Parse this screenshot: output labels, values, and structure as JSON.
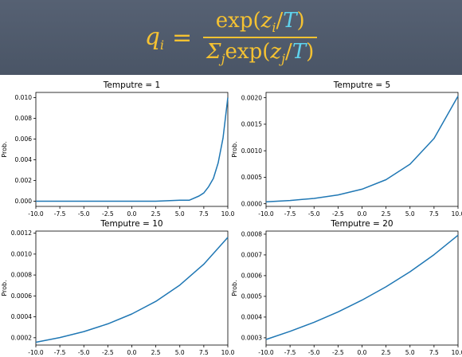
{
  "formula": {
    "lhs_q": "q",
    "lhs_i": "i",
    "eq": "=",
    "num_exp": "exp(",
    "num_z": "z",
    "num_i": "i",
    "num_slash": "/",
    "num_T": "T",
    "num_close": ")",
    "den_sigma": "Σ",
    "den_j": "j",
    "den_exp": "exp(",
    "den_z": "z",
    "den_zj": "j",
    "den_slash": "/",
    "den_T": "T",
    "den_close": ")",
    "color_main": "#f5c232",
    "color_T": "#5fd3ee"
  },
  "chart_data": [
    {
      "type": "line",
      "title": "Temputre = 1",
      "ylabel": "Prob.",
      "temperature": 1,
      "xlim": [
        -10.0,
        10.0
      ],
      "ylim": [
        -0.0005,
        0.0105
      ],
      "xticks": [
        "-10.0",
        "-7.5",
        "-5.0",
        "-2.5",
        "0.0",
        "2.5",
        "5.0",
        "7.5",
        "10.0"
      ],
      "yticks": [
        "0.000",
        "0.002",
        "0.004",
        "0.006",
        "0.008",
        "0.010"
      ],
      "series": [
        {
          "x": [
            -10.0,
            -7.5,
            -5.0,
            -2.5,
            0.0,
            2.5,
            5.0,
            6.0,
            7.0,
            7.5,
            8.0,
            8.5,
            9.0,
            9.5,
            10.0
          ],
          "y": [
            0.0,
            0.0,
            0.0,
            0.0,
            0.0,
            0.0,
            0.0001,
            0.0001,
            0.0005,
            0.0008,
            0.0014,
            0.0022,
            0.0037,
            0.0061,
            0.01
          ],
          "color": "#1f77b4"
        }
      ]
    },
    {
      "type": "line",
      "title": "Temputre = 5",
      "ylabel": "Prob.",
      "temperature": 5,
      "xlim": [
        -10.0,
        10.0
      ],
      "ylim": [
        -5e-05,
        0.0021
      ],
      "xticks": [
        "-10.0",
        "-7.5",
        "-5.0",
        "-2.5",
        "0.0",
        "2.5",
        "5.0",
        "7.5",
        "10.0"
      ],
      "yticks": [
        "0.0000",
        "0.0005",
        "0.0010",
        "0.0015",
        "0.0020"
      ],
      "series": [
        {
          "x": [
            -10.0,
            -7.5,
            -5.0,
            -2.5,
            0.0,
            2.5,
            5.0,
            7.5,
            10.0
          ],
          "y": [
            3.72e-05,
            6.13e-05,
            0.0001011,
            0.0001667,
            0.0002748,
            0.000453,
            0.000747,
            0.0012316,
            0.0020305
          ],
          "color": "#1f77b4"
        }
      ]
    },
    {
      "type": "line",
      "title": "Temputre = 10",
      "ylabel": "Prob.",
      "temperature": 10,
      "xlim": [
        -10.0,
        10.0
      ],
      "ylim": [
        0.00013,
        0.00122
      ],
      "xticks": [
        "-10.0",
        "-7.5",
        "-5.0",
        "-2.5",
        "0.0",
        "2.5",
        "5.0",
        "7.5",
        "10.0"
      ],
      "yticks": [
        "0.0002",
        "0.0004",
        "0.0006",
        "0.0008",
        "0.0010",
        "0.0012"
      ],
      "series": [
        {
          "x": [
            -10.0,
            -7.5,
            -5.0,
            -2.5,
            0.0,
            2.5,
            5.0,
            7.5,
            10.0
          ],
          "y": [
            0.000157,
            0.000202,
            0.000259,
            0.000333,
            0.000427,
            0.000548,
            0.000704,
            0.000904,
            0.00116
          ],
          "color": "#1f77b4"
        }
      ]
    },
    {
      "type": "line",
      "title": "Temputre = 20",
      "ylabel": "Prob.",
      "temperature": 20,
      "xlim": [
        -10.0,
        10.0
      ],
      "ylim": [
        0.000265,
        0.000815
      ],
      "xticks": [
        "-10.0",
        "-7.5",
        "-5.0",
        "-2.5",
        "0.0",
        "2.5",
        "5.0",
        "7.5",
        "10.0"
      ],
      "yticks": [
        "0.0003",
        "0.0004",
        "0.0005",
        "0.0006",
        "0.0007",
        "0.0008"
      ],
      "series": [
        {
          "x": [
            -10.0,
            -7.5,
            -5.0,
            -2.5,
            0.0,
            2.5,
            5.0,
            7.5,
            10.0
          ],
          "y": [
            0.000292,
            0.000331,
            0.000375,
            0.000425,
            0.000482,
            0.000546,
            0.000619,
            0.000701,
            0.000795
          ],
          "color": "#1f77b4"
        }
      ]
    }
  ]
}
